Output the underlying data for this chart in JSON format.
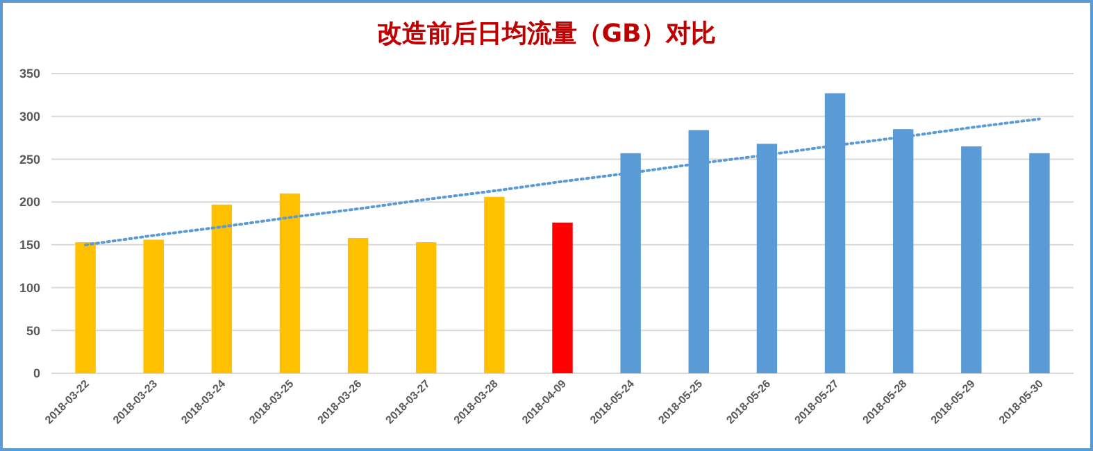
{
  "chart_data": {
    "type": "bar",
    "title": "改造前后日均流量（GB）对比",
    "categories": [
      "2018-03-22",
      "2018-03-23",
      "2018-03-24",
      "2018-03-25",
      "2018-03-26",
      "2018-03-27",
      "2018-03-28",
      "2018-04-09",
      "2018-05-24",
      "2018-05-25",
      "2018-05-26",
      "2018-05-27",
      "2018-05-28",
      "2018-05-29",
      "2018-05-30"
    ],
    "series": [
      {
        "values": [
          153,
          156,
          197,
          210,
          158,
          153,
          206,
          176,
          257,
          284,
          268,
          327,
          285,
          265,
          257
        ],
        "colors": [
          "#ffc000",
          "#ffc000",
          "#ffc000",
          "#ffc000",
          "#ffc000",
          "#ffc000",
          "#ffc000",
          "#ff0000",
          "#5b9bd5",
          "#5b9bd5",
          "#5b9bd5",
          "#5b9bd5",
          "#5b9bd5",
          "#5b9bd5",
          "#5b9bd5"
        ]
      },
      {
        "type": "line",
        "values": [
          150,
          161,
          171,
          182,
          192,
          203,
          213,
          224,
          234,
          245,
          255,
          266,
          276,
          287,
          297
        ],
        "color": "#5b9bd5",
        "line_style": "dotted"
      }
    ],
    "ylim": [
      0,
      350
    ],
    "yticks": [
      0,
      50,
      100,
      150,
      200,
      250,
      300,
      350
    ],
    "grid": "y"
  }
}
